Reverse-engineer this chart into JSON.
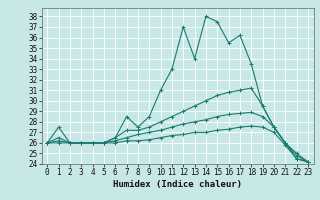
{
  "xlabel": "Humidex (Indice chaleur)",
  "ylabel": "",
  "xlim": [
    -0.5,
    23.5
  ],
  "ylim": [
    24,
    38.8
  ],
  "yticks": [
    24,
    25,
    26,
    27,
    28,
    29,
    30,
    31,
    32,
    33,
    34,
    35,
    36,
    37,
    38
  ],
  "xticks": [
    0,
    1,
    2,
    3,
    4,
    5,
    6,
    7,
    8,
    9,
    10,
    11,
    12,
    13,
    14,
    15,
    16,
    17,
    18,
    19,
    20,
    21,
    22,
    23
  ],
  "background_color": "#c8e8e8",
  "grid_color": "#ffffff",
  "line_color": "#1a7a6e",
  "lines": [
    [
      26.0,
      27.5,
      26.0,
      26.0,
      26.0,
      26.0,
      26.5,
      28.5,
      27.5,
      28.5,
      31.0,
      33.0,
      37.0,
      34.0,
      38.0,
      37.5,
      35.5,
      36.2,
      33.5,
      29.5,
      27.5,
      26.0,
      25.0,
      24.2
    ],
    [
      26.0,
      26.5,
      26.0,
      26.0,
      26.0,
      26.0,
      26.5,
      27.2,
      27.2,
      27.5,
      28.0,
      28.5,
      29.0,
      29.5,
      30.0,
      30.5,
      30.8,
      31.0,
      31.2,
      29.5,
      27.5,
      26.0,
      24.8,
      24.2
    ],
    [
      26.0,
      26.2,
      26.0,
      26.0,
      26.0,
      26.0,
      26.2,
      26.5,
      26.8,
      27.0,
      27.2,
      27.5,
      27.8,
      28.0,
      28.2,
      28.5,
      28.7,
      28.8,
      28.9,
      28.5,
      27.5,
      26.0,
      24.5,
      24.2
    ],
    [
      26.0,
      26.0,
      26.0,
      26.0,
      26.0,
      26.0,
      26.0,
      26.2,
      26.2,
      26.3,
      26.5,
      26.7,
      26.8,
      27.0,
      27.0,
      27.2,
      27.3,
      27.5,
      27.6,
      27.5,
      27.0,
      25.8,
      24.5,
      24.2
    ]
  ]
}
